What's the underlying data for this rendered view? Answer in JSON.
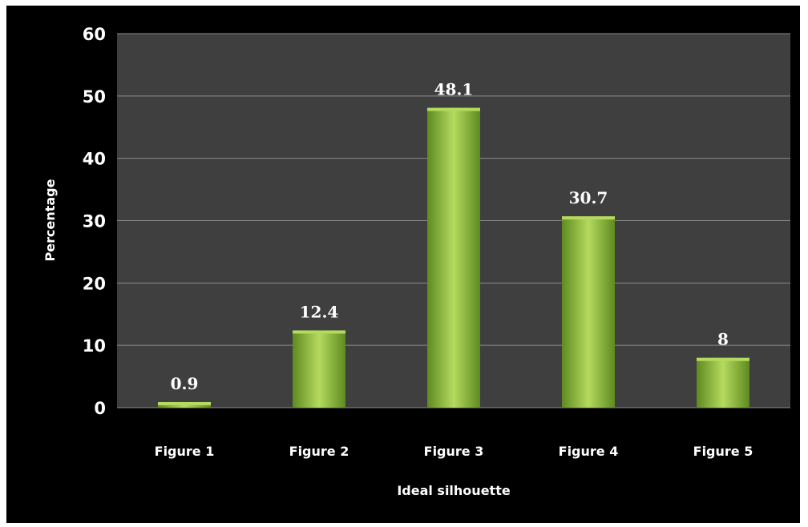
{
  "chart_data": {
    "type": "bar",
    "categories": [
      "Figure 1",
      "Figure 2",
      "Figure 3",
      "Figure 4",
      "Figure 5"
    ],
    "values": [
      0.9,
      12.4,
      48.1,
      30.7,
      8
    ],
    "data_labels": [
      "0.9",
      "12.4",
      "48.1",
      "30.7",
      "8"
    ],
    "xlabel": "Ideal silhouette",
    "ylabel": "Percentage",
    "ylim": [
      0,
      60
    ],
    "yticks": [
      0,
      10,
      20,
      30,
      40,
      50,
      60
    ],
    "ytick_labels": [
      "0",
      "10",
      "20",
      "30",
      "40",
      "50",
      "60"
    ],
    "grid": true,
    "legend": false
  },
  "colors": {
    "frame_background": "#000000",
    "plot_background": "#3f3f3f",
    "gridline": "#8c8c8c",
    "bar_light": "#b4da5e",
    "bar_mid": "#94c23e",
    "bar_dark": "#5e8a20",
    "text": "#ffffff"
  }
}
